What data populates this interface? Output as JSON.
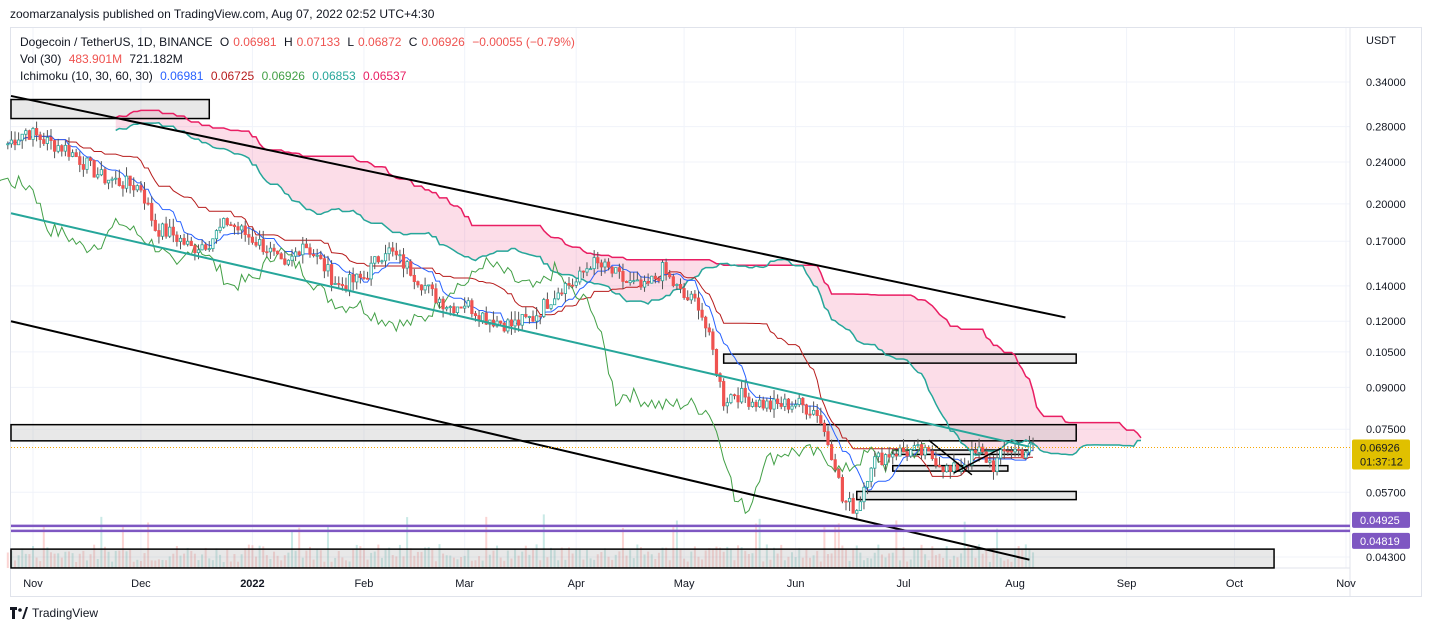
{
  "publisher": "zoomarzanalysis published on TradingView.com, Aug 07, 2022 02:52 UTC+4:30",
  "legend": {
    "symbol": "Dogecoin / TetherUS, 1D, BINANCE",
    "o_label": "O",
    "o": "0.06981",
    "h_label": "H",
    "h": "0.07133",
    "l_label": "L",
    "l": "0.06872",
    "c_label": "C",
    "c": "0.06926",
    "change": "−0.00055 (−0.79%)",
    "vol_label": "Vol (30)",
    "vol1": "483.901M",
    "vol2": "721.182M",
    "ichi_label": "Ichimoku (10, 30, 60, 30)",
    "ichi1": "0.06981",
    "ichi2": "0.06725",
    "ichi3": "0.06926",
    "ichi4": "0.06853",
    "ichi5": "0.06537"
  },
  "footer": {
    "brand": "TradingView"
  },
  "colors": {
    "up": "#26a69a",
    "down": "#ef5350",
    "candle_body_dark": "#4a4a5a",
    "tenkan": "#2962ff",
    "kijun": "#b71c1c",
    "chikou": "#43a047",
    "span_a": "#26a69a",
    "span_b": "#e91e63",
    "cloud_red": "rgba(233,30,99,0.15)",
    "cloud_green": "rgba(38,166,154,0.15)",
    "support_line": "#7e57c2",
    "price_tag": "#e0c000"
  },
  "chart_data": {
    "type": "candlestick",
    "scale": "log",
    "currency": "USDT",
    "y_ticks": [
      0.34,
      0.28,
      0.24,
      0.2,
      0.17,
      0.14,
      0.12,
      0.105,
      0.09,
      0.075,
      0.057,
      0.043
    ],
    "y_tick_labels": [
      "0.34000",
      "0.28000",
      "0.24000",
      "0.20000",
      "0.17000",
      "0.14000",
      "0.12000",
      "0.10500",
      "0.09000",
      "0.07500",
      "0.05700",
      "0.04300"
    ],
    "x_ticks": [
      "Nov",
      "Dec",
      "2022",
      "Feb",
      "Mar",
      "Apr",
      "May",
      "Jun",
      "Jul",
      "Aug",
      "Sep",
      "Oct",
      "Nov"
    ],
    "x_tick_dates": [
      "2021-11-01",
      "2021-12-01",
      "2022-01-01",
      "2022-02-01",
      "2022-03-01",
      "2022-04-01",
      "2022-05-01",
      "2022-06-01",
      "2022-07-01",
      "2022-08-01",
      "2022-09-01",
      "2022-10-01",
      "2022-11-01"
    ],
    "last_price": {
      "value": "0.06926",
      "countdown": "01:37:12",
      "y": 0.06926
    },
    "support_levels": [
      {
        "label": "0.04925",
        "y": 0.04925
      },
      {
        "label": "0.04819",
        "y": 0.04819
      }
    ],
    "close_series": [
      [
        "2021-10-25",
        0.26
      ],
      [
        "2021-10-30",
        0.275
      ],
      [
        "2021-11-05",
        0.262
      ],
      [
        "2021-11-10",
        0.255
      ],
      [
        "2021-11-15",
        0.24
      ],
      [
        "2021-11-20",
        0.225
      ],
      [
        "2021-11-25",
        0.22
      ],
      [
        "2021-12-01",
        0.215
      ],
      [
        "2021-12-05",
        0.18
      ],
      [
        "2021-12-10",
        0.175
      ],
      [
        "2021-12-15",
        0.165
      ],
      [
        "2021-12-20",
        0.17
      ],
      [
        "2021-12-25",
        0.185
      ],
      [
        "2022-01-01",
        0.172
      ],
      [
        "2022-01-05",
        0.165
      ],
      [
        "2022-01-10",
        0.15
      ],
      [
        "2022-01-15",
        0.17
      ],
      [
        "2022-01-20",
        0.155
      ],
      [
        "2022-01-25",
        0.14
      ],
      [
        "2022-02-01",
        0.145
      ],
      [
        "2022-02-07",
        0.165
      ],
      [
        "2022-02-14",
        0.15
      ],
      [
        "2022-02-20",
        0.135
      ],
      [
        "2022-02-25",
        0.128
      ],
      [
        "2022-03-01",
        0.13
      ],
      [
        "2022-03-07",
        0.122
      ],
      [
        "2022-03-14",
        0.118
      ],
      [
        "2022-03-20",
        0.122
      ],
      [
        "2022-03-28",
        0.14
      ],
      [
        "2022-04-01",
        0.142
      ],
      [
        "2022-04-05",
        0.155
      ],
      [
        "2022-04-10",
        0.15
      ],
      [
        "2022-04-15",
        0.142
      ],
      [
        "2022-04-20",
        0.138
      ],
      [
        "2022-04-25",
        0.15
      ],
      [
        "2022-05-01",
        0.133
      ],
      [
        "2022-05-05",
        0.13
      ],
      [
        "2022-05-09",
        0.105
      ],
      [
        "2022-05-12",
        0.085
      ],
      [
        "2022-05-15",
        0.088
      ],
      [
        "2022-05-20",
        0.085
      ],
      [
        "2022-05-25",
        0.083
      ],
      [
        "2022-06-01",
        0.084
      ],
      [
        "2022-06-07",
        0.081
      ],
      [
        "2022-06-12",
        0.065
      ],
      [
        "2022-06-14",
        0.055
      ],
      [
        "2022-06-18",
        0.053
      ],
      [
        "2022-06-22",
        0.065
      ],
      [
        "2022-06-28",
        0.068
      ],
      [
        "2022-07-05",
        0.068
      ],
      [
        "2022-07-10",
        0.066
      ],
      [
        "2022-07-14",
        0.062
      ],
      [
        "2022-07-18",
        0.065
      ],
      [
        "2022-07-22",
        0.068
      ],
      [
        "2022-07-26",
        0.064
      ],
      [
        "2022-07-30",
        0.069
      ],
      [
        "2022-08-03",
        0.068
      ],
      [
        "2022-08-06",
        0.06926
      ]
    ],
    "trend_lines": [
      {
        "name": "channel-upper",
        "from": [
          "2021-10-25",
          0.32
        ],
        "to": [
          "2022-08-15",
          0.122
        ]
      },
      {
        "name": "channel-mid",
        "from": [
          "2021-10-25",
          0.192
        ],
        "to": [
          "2022-08-05",
          0.0695
        ]
      },
      {
        "name": "channel-lower",
        "from": [
          "2021-10-25",
          0.12
        ],
        "to": [
          "2022-08-05",
          0.0425
        ]
      }
    ],
    "zones": [
      {
        "name": "zone-top",
        "from": "2021-10-25",
        "to": "2021-12-20",
        "y_top": 0.315,
        "y_bottom": 0.29
      },
      {
        "name": "zone-0105",
        "from": "2022-05-12",
        "to": "2022-08-18",
        "y_top": 0.104,
        "y_bottom": 0.1
      },
      {
        "name": "zone-075",
        "from": "2021-10-25",
        "to": "2022-08-18",
        "y_top": 0.0765,
        "y_bottom": 0.0713
      },
      {
        "name": "zone-057",
        "from": "2022-06-18",
        "to": "2022-08-18",
        "y_top": 0.0572,
        "y_bottom": 0.0552
      },
      {
        "name": "zone-range",
        "from": "2022-06-28",
        "to": "2022-08-05",
        "y_top": 0.0685,
        "y_bottom": 0.0672
      },
      {
        "name": "zone-range-low",
        "from": "2022-06-28",
        "to": "2022-07-30",
        "y_top": 0.064,
        "y_bottom": 0.0625
      },
      {
        "name": "zone-bottom",
        "from": "2021-10-25",
        "to": "2022-10-12",
        "y_top": 0.0445,
        "y_bottom": 0.041
      }
    ]
  }
}
